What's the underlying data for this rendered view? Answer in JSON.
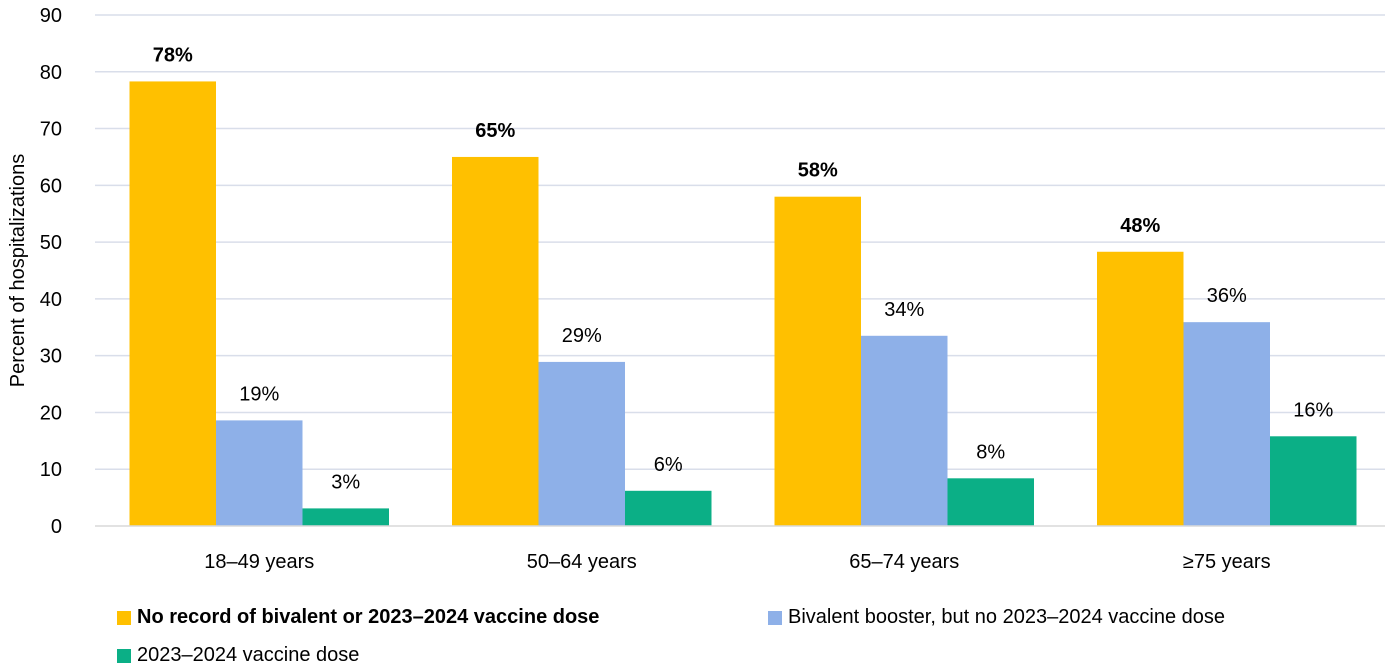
{
  "chart_data": {
    "type": "bar",
    "ylabel": "Percent of hospitalizations",
    "xlabel": "",
    "ylim": [
      0,
      90
    ],
    "yticks": [
      0,
      10,
      20,
      30,
      40,
      50,
      60,
      70,
      80,
      90
    ],
    "grid": true,
    "legend_position": "bottom",
    "categories": [
      "18–49 years",
      "50–64 years",
      "65–74 years",
      "≥75 years"
    ],
    "series": [
      {
        "name": "No record of bivalent or 2023–2024 vaccine dose",
        "color": "#FFC000",
        "bold_labels": true,
        "values": [
          78.3,
          65.0,
          58.0,
          48.3
        ],
        "labels": [
          "78%",
          "65%",
          "58%",
          "48%"
        ]
      },
      {
        "name": "Bivalent booster, but no 2023–2024 vaccine dose",
        "color": "#8EB0E8",
        "bold_labels": false,
        "values": [
          18.6,
          28.9,
          33.5,
          35.9
        ],
        "labels": [
          "19%",
          "29%",
          "34%",
          "36%"
        ]
      },
      {
        "name": "2023–2024 vaccine dose",
        "color": "#0BAF86",
        "bold_labels": false,
        "values": [
          3.1,
          6.2,
          8.4,
          15.8
        ],
        "labels": [
          "3%",
          "6%",
          "8%",
          "16%"
        ]
      }
    ]
  }
}
